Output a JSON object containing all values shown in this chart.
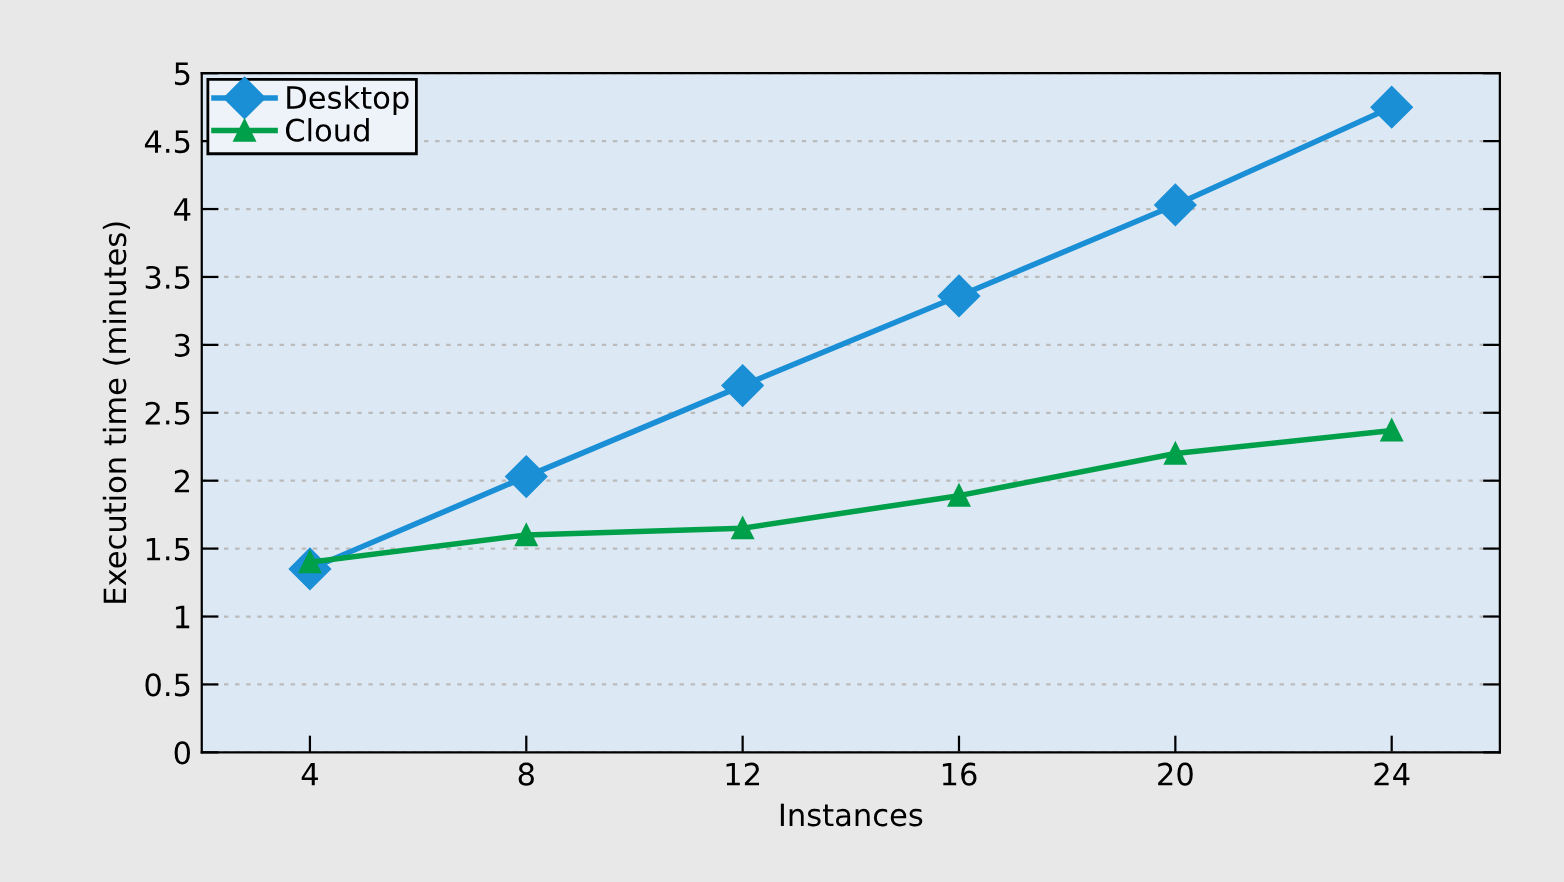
{
  "chart_data": {
    "type": "line",
    "xlabel": "Instances",
    "ylabel": "Execution time (minutes)",
    "x": [
      4,
      8,
      12,
      16,
      20,
      24
    ],
    "series": [
      {
        "name": "Desktop",
        "color": "#1a8fd6",
        "marker": "diamond",
        "values": [
          1.35,
          2.03,
          2.7,
          3.36,
          4.03,
          4.75
        ]
      },
      {
        "name": "Cloud",
        "color": "#00a04b",
        "marker": "triangle",
        "values": [
          1.4,
          1.6,
          1.65,
          1.89,
          2.2,
          2.37
        ]
      }
    ],
    "xlim": [
      2,
      26
    ],
    "xticks": [
      4,
      8,
      12,
      16,
      20,
      24
    ],
    "ylim": [
      0,
      5
    ],
    "yticks": [
      0,
      0.5,
      1,
      1.5,
      2,
      2.5,
      3,
      3.5,
      4,
      4.5,
      5
    ],
    "grid": "y",
    "legend": "top left",
    "line_style": "solid"
  }
}
